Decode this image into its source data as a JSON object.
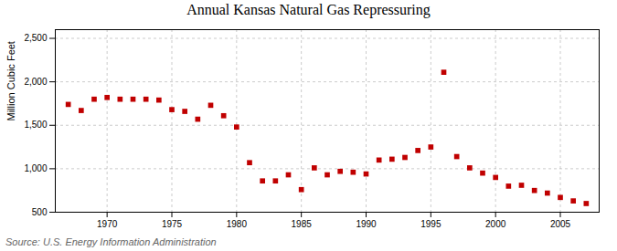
{
  "chart_data": {
    "type": "scatter",
    "title": "Annual Kansas Natural Gas Repressuring",
    "ylabel": "Million Cubic Feet",
    "source": "Source: U.S. Energy Information Administration",
    "x": [
      1967,
      1968,
      1969,
      1970,
      1971,
      1972,
      1973,
      1974,
      1975,
      1976,
      1977,
      1978,
      1979,
      1980,
      1981,
      1982,
      1983,
      1984,
      1985,
      1986,
      1987,
      1988,
      1989,
      1990,
      1991,
      1992,
      1993,
      1994,
      1995,
      1996,
      1997,
      1998,
      1999,
      2000,
      2001,
      2002,
      2003,
      2004,
      2005,
      2006,
      2007
    ],
    "values": [
      1740,
      1670,
      1800,
      1820,
      1800,
      1800,
      1800,
      1790,
      1680,
      1660,
      1570,
      1730,
      1610,
      1480,
      1070,
      860,
      860,
      930,
      760,
      1010,
      930,
      970,
      960,
      940,
      1100,
      1110,
      1130,
      1210,
      1250,
      2110,
      1140,
      1010,
      950,
      900,
      800,
      810,
      750,
      720,
      670,
      630,
      600
    ],
    "color": "#c00000",
    "marker": "square",
    "xlim": [
      1966,
      2008
    ],
    "ylim": [
      500,
      2600
    ],
    "xticks": [
      1970,
      1975,
      1980,
      1985,
      1990,
      1995,
      2000,
      2005
    ],
    "yticks": [
      500,
      {
        "value": 1000,
        "label": "1,000"
      },
      {
        "value": 1500,
        "label": "1,500"
      },
      {
        "value": 2000,
        "label": "2,000"
      },
      {
        "value": 2500,
        "label": "2,500"
      }
    ],
    "grid": true
  }
}
